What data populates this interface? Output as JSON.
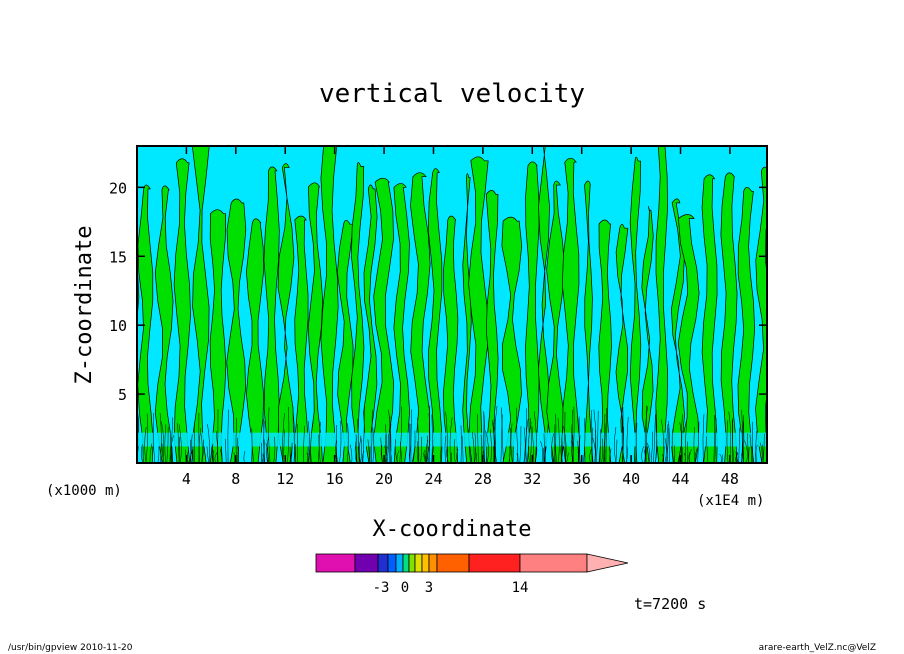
{
  "chart_data": {
    "type": "contour",
    "title": "vertical velocity",
    "xlabel": "X-coordinate",
    "ylabel": "Z-coordinate",
    "x_units_left": "(x1000 m)",
    "x_units_right": "(x1E4 m)",
    "x_ticks": [
      "4",
      "8",
      "12",
      "16",
      "20",
      "24",
      "28",
      "32",
      "36",
      "40",
      "44",
      "48"
    ],
    "y_ticks": [
      "5",
      "10",
      "15",
      "20"
    ],
    "xlim": [
      0,
      51
    ],
    "ylim": [
      0,
      23
    ],
    "colorbar": {
      "labels": [
        "-3",
        "0",
        "3",
        "14"
      ],
      "colors": [
        "#e010b0",
        "#7000b0",
        "#2030d0",
        "#0060ff",
        "#00b0ff",
        "#00e080",
        "#80e000",
        "#e0e000",
        "#ffc000",
        "#ff9000",
        "#ff6000",
        "#ff2020",
        "#ff8080",
        "#ffb0b0"
      ]
    },
    "field_colors": {
      "cyan": "#00e8ff",
      "green": "#00e000",
      "contour": "#000000"
    },
    "time_label": "t=7200 s"
  },
  "footer": {
    "left": "/usr/bin/gpview   2010-11-20",
    "right": "arare-earth_VelZ.nc@VelZ"
  }
}
